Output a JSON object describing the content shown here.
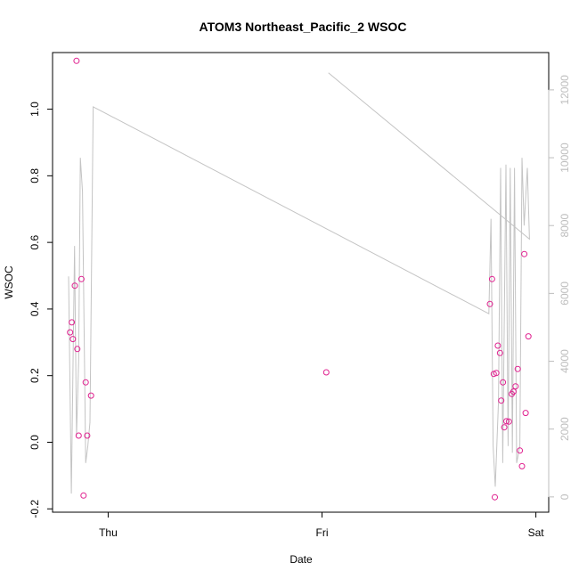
{
  "chart_data": {
    "type": "scatter",
    "title": "ATOM3 Northeast_Pacific_2 WSOC",
    "xlabel": "Date",
    "ylabel": "WSOC",
    "x_ticks": [
      {
        "label": "Thu",
        "value": 1.0
      },
      {
        "label": "Fri",
        "value": 2.0
      },
      {
        "label": "Sat",
        "value": 3.0
      }
    ],
    "xlim": [
      0.74,
      3.06
    ],
    "ylim": [
      -0.21,
      1.17
    ],
    "y_ticks": [
      -0.2,
      0.0,
      0.2,
      0.4,
      0.6,
      0.8,
      1.0
    ],
    "y2lim": [
      -450,
      13100
    ],
    "y2_ticks": [
      0,
      2000,
      4000,
      6000,
      8000,
      10000,
      12000
    ],
    "colors": {
      "points": "#e0208f",
      "altitude_line": "#c4c4c4",
      "axis": "#000000",
      "right_axis": "#bdbdbd"
    },
    "series": [
      {
        "values": [
          [
            0.822,
            0.33
          ],
          [
            0.83,
            0.36
          ],
          [
            0.835,
            0.31
          ],
          [
            0.844,
            0.47
          ],
          [
            0.852,
            1.145
          ],
          [
            0.856,
            0.28
          ],
          [
            0.862,
            0.02
          ],
          [
            0.875,
            0.49
          ],
          [
            0.885,
            -0.16
          ],
          [
            0.895,
            0.18
          ],
          [
            0.902,
            0.02
          ],
          [
            0.92,
            0.14
          ],
          [
            2.02,
            0.21
          ],
          [
            2.785,
            0.415
          ],
          [
            2.795,
            0.49
          ],
          [
            2.803,
            0.205
          ],
          [
            2.808,
            -0.165
          ],
          [
            2.815,
            0.208
          ],
          [
            2.822,
            0.29
          ],
          [
            2.832,
            0.268
          ],
          [
            2.838,
            0.125
          ],
          [
            2.846,
            0.18
          ],
          [
            2.852,
            0.045
          ],
          [
            2.862,
            0.063
          ],
          [
            2.874,
            0.062
          ],
          [
            2.887,
            0.145
          ],
          [
            2.895,
            0.152
          ],
          [
            2.905,
            0.168
          ],
          [
            2.915,
            0.22
          ],
          [
            2.925,
            -0.025
          ],
          [
            2.935,
            -0.072
          ],
          [
            2.946,
            0.565
          ],
          [
            2.952,
            0.088
          ],
          [
            2.965,
            0.318
          ]
        ]
      },
      {
        "axis": "right",
        "values": [
          [
            0.815,
            6500
          ],
          [
            0.828,
            100
          ],
          [
            0.843,
            7400
          ],
          [
            0.852,
            1800
          ],
          [
            0.862,
            4000
          ],
          [
            0.87,
            10000
          ],
          [
            0.88,
            9000
          ],
          [
            0.895,
            1000
          ],
          [
            0.905,
            1500
          ],
          [
            0.915,
            2200
          ],
          [
            0.93,
            11500
          ],
          [
            2.78,
            5400
          ],
          [
            2.79,
            8200
          ],
          [
            2.8,
            1500
          ],
          [
            2.81,
            300
          ],
          [
            2.825,
            2800
          ],
          [
            2.835,
            9700
          ],
          [
            2.845,
            1000
          ],
          [
            2.86,
            9800
          ],
          [
            2.87,
            1500
          ],
          [
            2.88,
            9700
          ],
          [
            2.89,
            1300
          ],
          [
            2.9,
            9700
          ],
          [
            2.91,
            1000
          ],
          [
            2.925,
            1500
          ],
          [
            2.935,
            10000
          ],
          [
            2.945,
            8000
          ],
          [
            2.96,
            9700
          ],
          [
            2.97,
            7600
          ],
          [
            2.03,
            12500
          ]
        ]
      }
    ]
  }
}
